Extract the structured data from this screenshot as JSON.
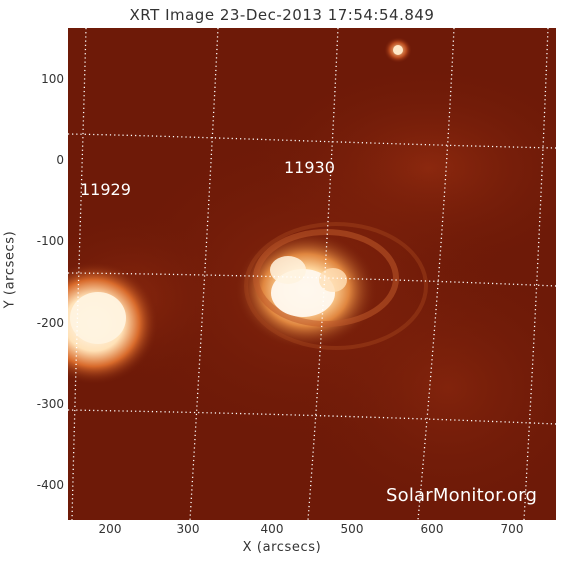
{
  "title": "XRT Image 23-Dec-2013 17:54:54.849",
  "axes": {
    "xlabel": "X (arcsecs)",
    "ylabel": "Y (arcsecs)",
    "xticks": [
      "200",
      "300",
      "400",
      "500",
      "600",
      "700"
    ],
    "yticks": [
      "100",
      "0",
      "-100",
      "-200",
      "-300",
      "-400"
    ]
  },
  "regions": {
    "r1": "11929",
    "r2": "11930"
  },
  "watermark": "SolarMonitor.org",
  "colors": {
    "background": "#6e1a08",
    "dark": "#4d1005",
    "hot": "#fff2d8",
    "frame": "#ffffff"
  }
}
